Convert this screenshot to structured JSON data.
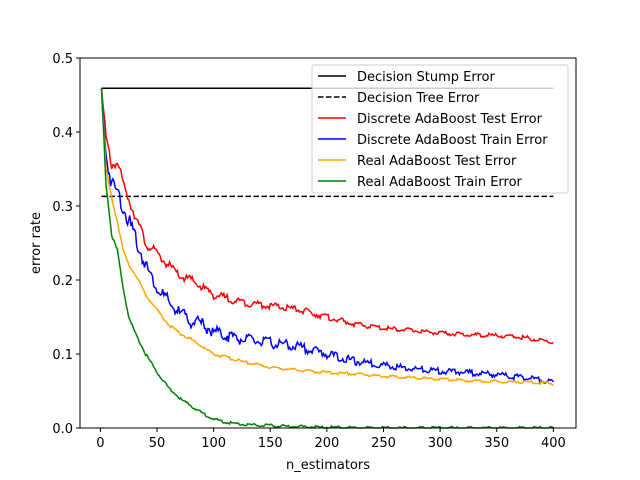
{
  "chart_data": {
    "type": "line",
    "title": "",
    "xlabel": "n_estimators",
    "ylabel": "error rate",
    "xlim": [
      -18,
      420
    ],
    "ylim": [
      0.0,
      0.5
    ],
    "xticks": [
      0,
      50,
      100,
      150,
      200,
      250,
      300,
      350,
      400
    ],
    "yticks": [
      0.0,
      0.1,
      0.2,
      0.3,
      0.4,
      0.5
    ],
    "xtick_labels": [
      "0",
      "50",
      "100",
      "150",
      "200",
      "250",
      "300",
      "350",
      "400"
    ],
    "ytick_labels": [
      "0.0",
      "0.1",
      "0.2",
      "0.3",
      "0.4",
      "0.5"
    ],
    "grid": false,
    "legend_position": "upper right",
    "series": [
      {
        "name": "Decision Stump Error",
        "color": "#000000",
        "style": "solid",
        "x": [
          1,
          400
        ],
        "y": [
          0.459,
          0.459
        ]
      },
      {
        "name": "Decision Tree Error",
        "color": "#000000",
        "style": "dashed",
        "x": [
          1,
          400
        ],
        "y": [
          0.313,
          0.313
        ]
      },
      {
        "name": "Discrete AdaBoost Test Error",
        "color": "#ff0000",
        "style": "solid",
        "x": [
          1,
          5,
          10,
          15,
          20,
          25,
          30,
          40,
          50,
          60,
          70,
          80,
          90,
          100,
          125,
          150,
          175,
          200,
          225,
          250,
          275,
          300,
          325,
          350,
          375,
          400
        ],
        "y": [
          0.459,
          0.39,
          0.355,
          0.36,
          0.33,
          0.31,
          0.29,
          0.25,
          0.235,
          0.22,
          0.205,
          0.2,
          0.19,
          0.18,
          0.17,
          0.165,
          0.16,
          0.15,
          0.14,
          0.135,
          0.132,
          0.128,
          0.126,
          0.125,
          0.122,
          0.116
        ]
      },
      {
        "name": "Discrete AdaBoost Train Error",
        "color": "#0000ff",
        "style": "solid",
        "x": [
          1,
          5,
          10,
          15,
          20,
          25,
          30,
          40,
          50,
          60,
          70,
          80,
          90,
          100,
          125,
          150,
          175,
          200,
          225,
          250,
          275,
          300,
          325,
          350,
          375,
          400
        ],
        "y": [
          0.459,
          0.37,
          0.33,
          0.32,
          0.3,
          0.28,
          0.26,
          0.22,
          0.19,
          0.17,
          0.155,
          0.145,
          0.14,
          0.13,
          0.12,
          0.115,
          0.11,
          0.1,
          0.09,
          0.085,
          0.08,
          0.077,
          0.075,
          0.072,
          0.068,
          0.062
        ]
      },
      {
        "name": "Real AdaBoost Test Error",
        "color": "#ffa500",
        "style": "solid",
        "x": [
          1,
          5,
          10,
          15,
          20,
          25,
          30,
          40,
          50,
          60,
          70,
          80,
          90,
          100,
          125,
          150,
          175,
          200,
          225,
          250,
          275,
          300,
          325,
          350,
          375,
          400
        ],
        "y": [
          0.459,
          0.35,
          0.31,
          0.28,
          0.24,
          0.22,
          0.21,
          0.18,
          0.16,
          0.14,
          0.128,
          0.12,
          0.11,
          0.1,
          0.09,
          0.082,
          0.078,
          0.075,
          0.073,
          0.07,
          0.068,
          0.066,
          0.064,
          0.063,
          0.062,
          0.06
        ]
      },
      {
        "name": "Real AdaBoost Train Error",
        "color": "#008000",
        "style": "solid",
        "x": [
          1,
          5,
          10,
          15,
          20,
          25,
          30,
          40,
          50,
          60,
          70,
          80,
          90,
          100,
          110,
          125,
          150,
          175,
          200,
          225,
          250,
          275,
          300,
          350,
          400
        ],
        "y": [
          0.459,
          0.33,
          0.26,
          0.24,
          0.19,
          0.15,
          0.13,
          0.1,
          0.075,
          0.055,
          0.04,
          0.03,
          0.02,
          0.012,
          0.008,
          0.005,
          0.003,
          0.002,
          0.001,
          0.0,
          0.0,
          0.0,
          0.0,
          0.0,
          0.0
        ]
      }
    ]
  }
}
